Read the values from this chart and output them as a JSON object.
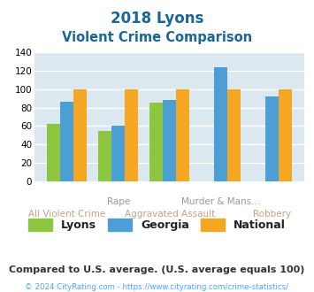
{
  "title_line1": "2018 Lyons",
  "title_line2": "Violent Crime Comparison",
  "lyons_color": "#8dc63f",
  "georgia_color": "#4b9fd5",
  "national_color": "#f5a623",
  "bg_color": "#dce8f0",
  "yticks": [
    0,
    20,
    40,
    60,
    80,
    100,
    120,
    140
  ],
  "lyons_vals": [
    62,
    55,
    85,
    0,
    0
  ],
  "georgia_vals": [
    86,
    60,
    88,
    124,
    92
  ],
  "national_vals": [
    100,
    100,
    100,
    100,
    100
  ],
  "xlabel_top": [
    "",
    "Rape",
    "",
    "Murder & Mans...",
    ""
  ],
  "xlabel_bot": [
    "All Violent Crime",
    "",
    "Aggravated Assault",
    "",
    "Robbery"
  ],
  "subtitle_text": "Compared to U.S. average. (U.S. average equals 100)",
  "copyright_text": "© 2024 CityRating.com - https://www.cityrating.com/crime-statistics/",
  "legend_labels": [
    "Lyons",
    "Georgia",
    "National"
  ]
}
